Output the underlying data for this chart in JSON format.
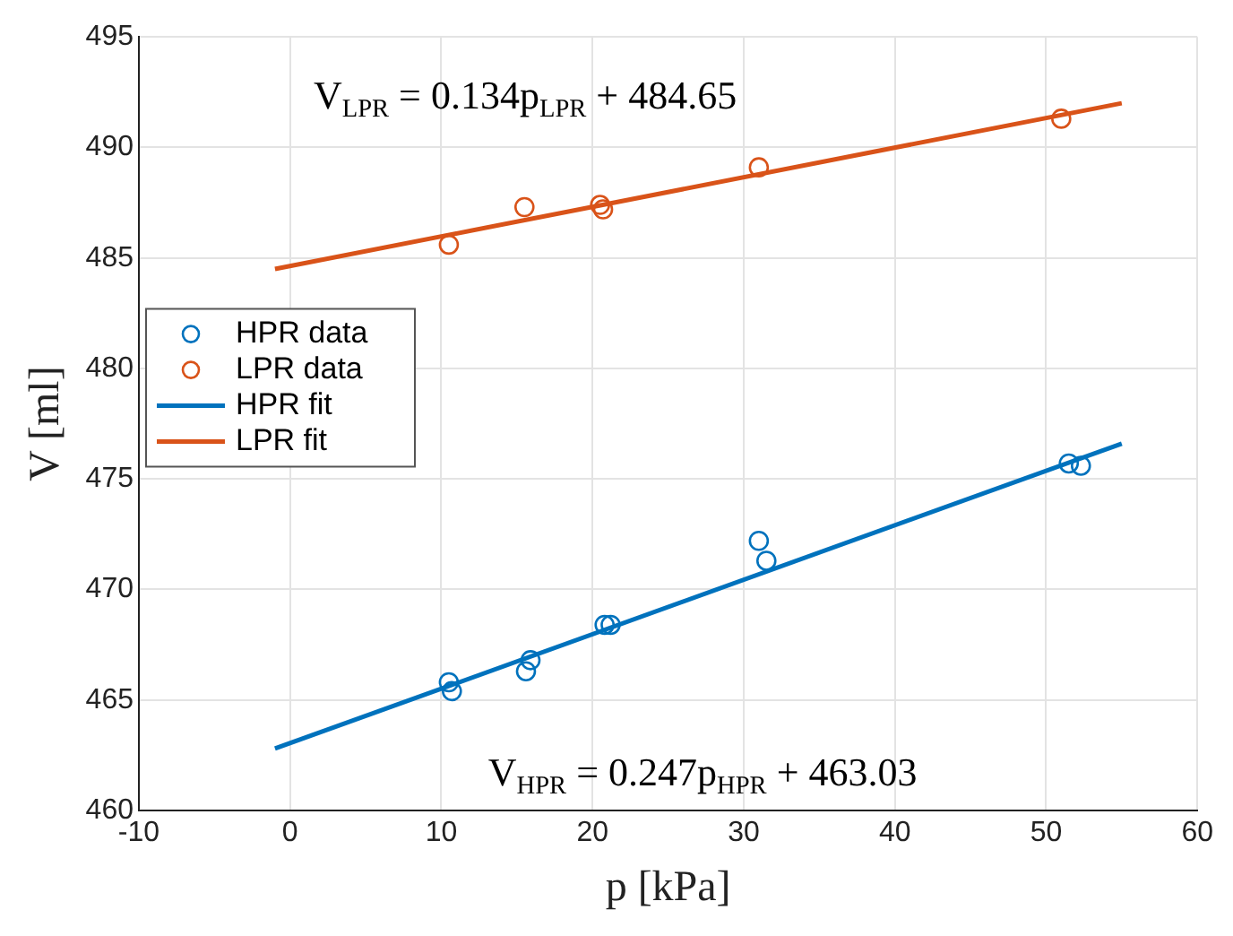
{
  "chart_data": {
    "type": "scatter",
    "xlabel": "p [kPa]",
    "ylabel": "V [ml]",
    "xlim": [
      -10,
      60
    ],
    "xticks": [
      -10,
      0,
      10,
      20,
      30,
      40,
      50,
      60
    ],
    "ylim": [
      460,
      495
    ],
    "yticks": [
      460,
      465,
      470,
      475,
      480,
      485,
      490,
      495
    ],
    "grid": true,
    "legend": "left",
    "series": [
      {
        "name": "HPR data",
        "type": "scatter",
        "marker": "circle",
        "color": "#0072bd",
        "x": [
          10.5,
          10.7,
          15.6,
          15.9,
          20.8,
          21.2,
          31,
          31.5,
          51.5,
          52.3
        ],
        "values": [
          465.8,
          465.4,
          466.3,
          466.8,
          468.4,
          468.4,
          472.2,
          471.3,
          475.7,
          475.6
        ]
      },
      {
        "name": "LPR data",
        "type": "scatter",
        "marker": "circle",
        "color": "#d95319",
        "x": [
          10.5,
          15.5,
          20.5,
          20.7,
          31,
          51
        ],
        "values": [
          485.6,
          487.3,
          487.4,
          487.2,
          489.1,
          491.3
        ]
      },
      {
        "name": "HPR fit",
        "type": "line",
        "marker": "none",
        "color": "#0072bd",
        "x": [
          -1,
          55
        ],
        "values": [
          462.8,
          476.6
        ]
      },
      {
        "name": "LPR fit",
        "type": "line",
        "marker": "none",
        "color": "#d95319",
        "x": [
          -1,
          55
        ],
        "values": [
          484.5,
          492.0
        ]
      }
    ],
    "annotations": [
      "V$_{LPR}$ = 0.134p$_{LPR}$ + 484.65",
      "V$_{HPR}$ = 0.247p$_{HPR}$ + 463.03"
    ]
  }
}
